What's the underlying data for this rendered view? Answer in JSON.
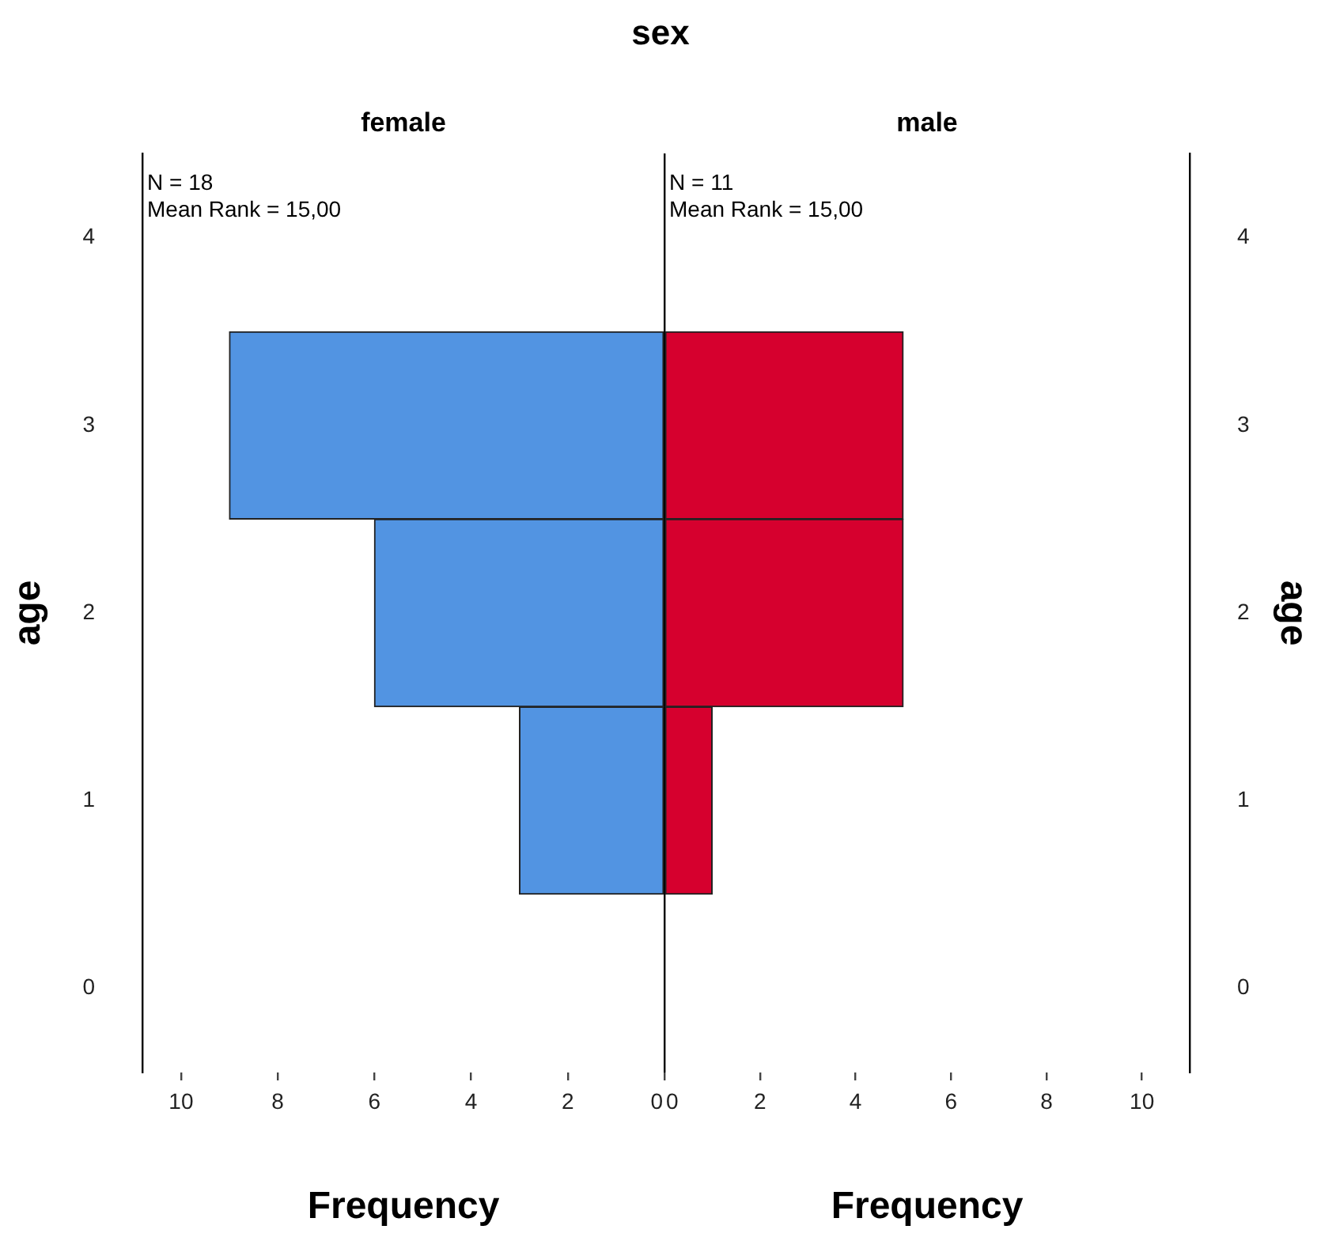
{
  "chart_data": [
    {
      "type": "histogram",
      "orientation": "horizontal",
      "title": "sex",
      "subtitle": "female",
      "xlabel": "Frequency",
      "ylabel": "age",
      "bins": [
        0.5,
        1.5,
        2.5,
        3.5
      ],
      "values": [
        3,
        6,
        9
      ],
      "color": "#5294e2",
      "xlim": [
        10.8,
        0
      ],
      "xticks": [
        10,
        8,
        6,
        4,
        2,
        0
      ],
      "ylim": [
        -0.45,
        4.45
      ],
      "yticks": [
        0,
        1,
        2,
        3,
        4
      ],
      "annotations": [
        "N = 18",
        "Mean Rank = 15,00"
      ]
    },
    {
      "type": "histogram",
      "orientation": "horizontal",
      "subtitle": "male",
      "xlabel": "Frequency",
      "ylabel": "age",
      "bins": [
        0.5,
        1.5,
        2.5,
        3.5
      ],
      "values": [
        1,
        5,
        5
      ],
      "color": "#d6002e",
      "xlim": [
        0,
        11
      ],
      "xticks": [
        0,
        2,
        4,
        6,
        8,
        10
      ],
      "ylim": [
        -0.45,
        4.45
      ],
      "yticks": [
        0,
        1,
        2,
        3,
        4
      ],
      "annotations": [
        "N = 11",
        "Mean Rank = 15,00"
      ]
    }
  ]
}
